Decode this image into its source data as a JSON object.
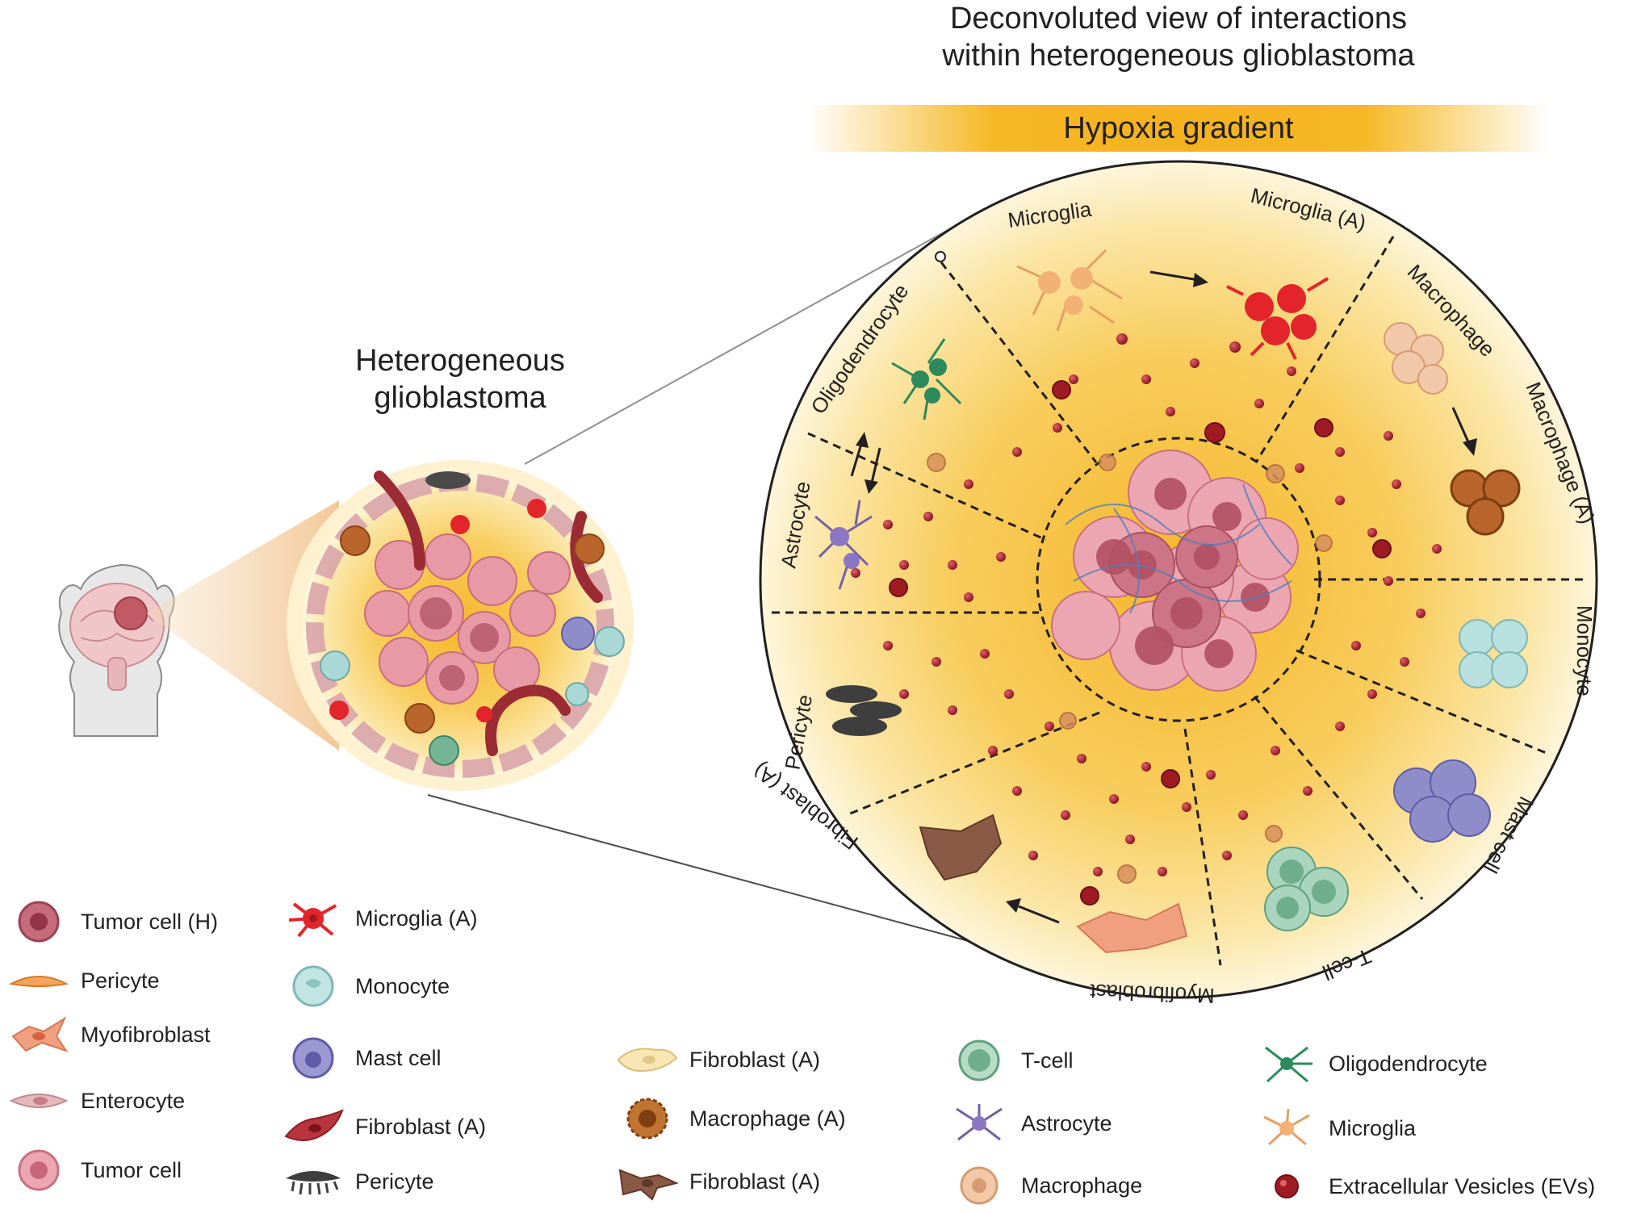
{
  "header": {
    "title_line1": "Deconvoluted view of interactions",
    "title_line2": "within heterogeneous glioblastoma",
    "gradient_label": "Hypoxia gradient"
  },
  "left_panel": {
    "title_line1": "Heterogeneous",
    "title_line2": "glioblastoma"
  },
  "sectors": [
    {
      "label": "Microglia"
    },
    {
      "label": "Microglia (A)"
    },
    {
      "label": "Macrophage"
    },
    {
      "label": "Macrophage (A)"
    },
    {
      "label": "Monocyte"
    },
    {
      "label": "Mast cell"
    },
    {
      "label": "T-cell"
    },
    {
      "label": "Myofibroblast"
    },
    {
      "label": "Fibroblast (A)"
    },
    {
      "label": "Pericyte"
    },
    {
      "label": "Astrocyte"
    },
    {
      "label": "Oligodendrocyte"
    }
  ],
  "legend": [
    {
      "label": "Tumor cell (H)",
      "icon": "tumor-cell-h-icon"
    },
    {
      "label": "Pericyte",
      "icon": "pericyte-icon"
    },
    {
      "label": "Myofibroblast",
      "icon": "myofibroblast-icon"
    },
    {
      "label": "Enterocyte",
      "icon": "enterocyte-icon"
    },
    {
      "label": "Tumor cell",
      "icon": "tumor-cell-icon"
    },
    {
      "label": "Microglia (A)",
      "icon": "microglia-a-icon"
    },
    {
      "label": "Monocyte",
      "icon": "monocyte-icon"
    },
    {
      "label": "Mast cell",
      "icon": "mast-cell-icon"
    },
    {
      "label": "Fibroblast (A)",
      "icon": "fibroblast-a-red-icon"
    },
    {
      "label": "Pericyte",
      "icon": "pericyte-dark-icon"
    },
    {
      "label": "Fibroblast (A)",
      "icon": "fibroblast-a-yellow-icon"
    },
    {
      "label": "Macrophage (A)",
      "icon": "macrophage-a-icon"
    },
    {
      "label": "Fibroblast (A)",
      "icon": "fibroblast-a-brown-icon"
    },
    {
      "label": "T-cell",
      "icon": "t-cell-icon"
    },
    {
      "label": "Astrocyte",
      "icon": "astrocyte-icon"
    },
    {
      "label": "Macrophage",
      "icon": "macrophage-icon"
    },
    {
      "label": "Oligodendrocyte",
      "icon": "oligodendrocyte-icon"
    },
    {
      "label": "Microglia",
      "icon": "microglia-icon"
    },
    {
      "label": "Extracellular Vesicles (EVs)",
      "icon": "ev-icon"
    }
  ],
  "colors": {
    "tumor": "#e58f9c",
    "tumor_dark": "#b9586a",
    "ev": "#9e1b24",
    "hypoxia": "#f4b21e",
    "glow": "#fbe7a6"
  }
}
